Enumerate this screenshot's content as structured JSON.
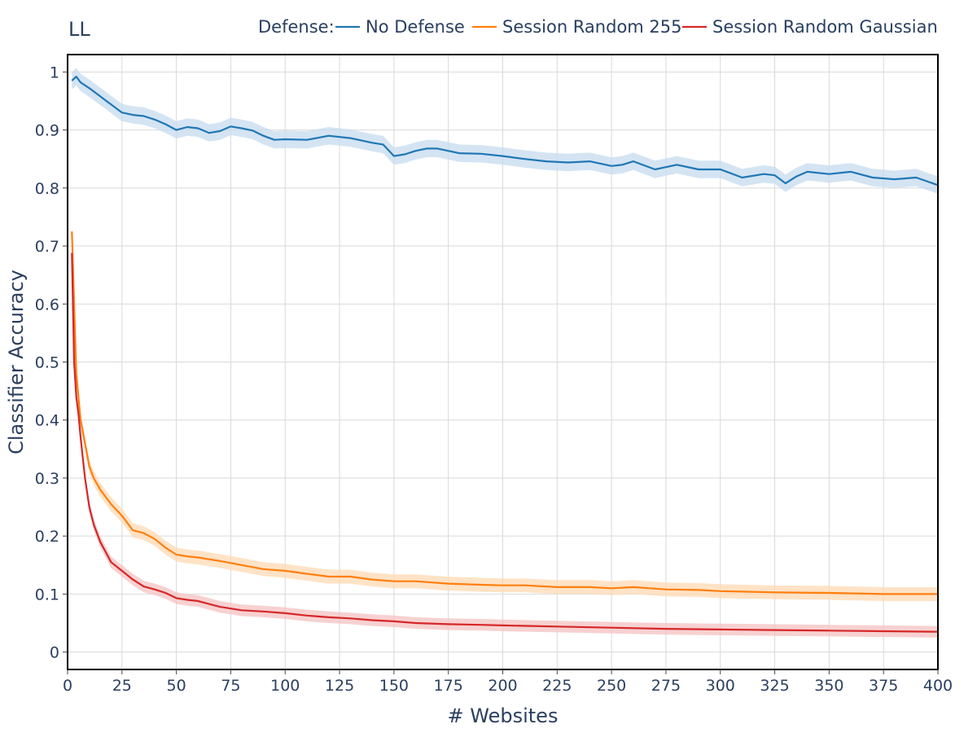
{
  "chart_data": {
    "type": "line",
    "title": "LL",
    "xlabel": "# Websites",
    "ylabel": "Classifier Accuracy",
    "xlim": [
      0,
      400
    ],
    "ylim": [
      -0.03,
      1.03
    ],
    "x_ticks": [
      0,
      25,
      50,
      75,
      100,
      125,
      150,
      175,
      200,
      225,
      250,
      275,
      300,
      325,
      350,
      375,
      400
    ],
    "y_ticks": [
      0,
      0.1,
      0.2,
      0.3,
      0.4,
      0.5,
      0.6,
      0.7,
      0.8,
      0.9,
      1
    ],
    "y_tick_labels": [
      "0",
      "0.1",
      "0.2",
      "0.3",
      "0.4",
      "0.5",
      "0.6",
      "0.7",
      "0.8",
      "0.9",
      "1"
    ],
    "grid": true,
    "legend": {
      "title": "Defense:",
      "position": "top"
    },
    "series": [
      {
        "name": "No Defense",
        "color": "#1f77b4",
        "band_color": "#c6dbef",
        "x": [
          2,
          4,
          6,
          10,
          15,
          20,
          25,
          30,
          35,
          40,
          45,
          50,
          55,
          60,
          65,
          70,
          75,
          80,
          85,
          90,
          95,
          100,
          110,
          120,
          130,
          140,
          145,
          150,
          155,
          160,
          165,
          170,
          180,
          190,
          200,
          210,
          220,
          230,
          240,
          250,
          255,
          260,
          270,
          275,
          280,
          290,
          300,
          310,
          320,
          325,
          330,
          335,
          340,
          350,
          360,
          370,
          380,
          390,
          400
        ],
        "y": [
          0.985,
          0.992,
          0.982,
          0.972,
          0.958,
          0.944,
          0.93,
          0.926,
          0.924,
          0.918,
          0.91,
          0.9,
          0.905,
          0.903,
          0.895,
          0.898,
          0.906,
          0.903,
          0.899,
          0.89,
          0.883,
          0.884,
          0.883,
          0.89,
          0.886,
          0.878,
          0.875,
          0.855,
          0.858,
          0.864,
          0.868,
          0.868,
          0.86,
          0.859,
          0.855,
          0.85,
          0.846,
          0.844,
          0.846,
          0.838,
          0.84,
          0.846,
          0.832,
          0.836,
          0.84,
          0.832,
          0.832,
          0.818,
          0.824,
          0.822,
          0.808,
          0.82,
          0.828,
          0.824,
          0.828,
          0.818,
          0.815,
          0.818,
          0.805
        ],
        "ci": 0.015
      },
      {
        "name": "Session Random 255",
        "color": "#ff7f0e",
        "band_color": "#ffd9b3",
        "x": [
          2,
          4,
          6,
          8,
          10,
          12,
          15,
          20,
          25,
          30,
          35,
          40,
          45,
          50,
          55,
          60,
          70,
          80,
          90,
          100,
          110,
          120,
          130,
          140,
          150,
          160,
          175,
          190,
          200,
          210,
          225,
          240,
          250,
          260,
          275,
          290,
          300,
          325,
          350,
          375,
          400
        ],
        "y": [
          0.725,
          0.48,
          0.4,
          0.36,
          0.32,
          0.3,
          0.28,
          0.255,
          0.235,
          0.21,
          0.205,
          0.195,
          0.18,
          0.168,
          0.165,
          0.163,
          0.157,
          0.15,
          0.143,
          0.14,
          0.135,
          0.13,
          0.13,
          0.125,
          0.122,
          0.122,
          0.118,
          0.116,
          0.115,
          0.115,
          0.112,
          0.112,
          0.11,
          0.112,
          0.108,
          0.107,
          0.105,
          0.103,
          0.102,
          0.1,
          0.1
        ],
        "ci": 0.012
      },
      {
        "name": "Session Random Gaussian",
        "color": "#d62728",
        "band_color": "#f4c2c2",
        "x": [
          2,
          3,
          4,
          5,
          6,
          8,
          10,
          12,
          15,
          20,
          25,
          30,
          35,
          40,
          45,
          50,
          55,
          60,
          70,
          80,
          90,
          100,
          110,
          120,
          130,
          140,
          150,
          160,
          175,
          190,
          200,
          225,
          250,
          275,
          300,
          325,
          350,
          375,
          400
        ],
        "y": [
          0.688,
          0.5,
          0.44,
          0.41,
          0.37,
          0.3,
          0.25,
          0.22,
          0.19,
          0.155,
          0.14,
          0.125,
          0.113,
          0.108,
          0.102,
          0.093,
          0.09,
          0.088,
          0.078,
          0.072,
          0.07,
          0.067,
          0.063,
          0.06,
          0.058,
          0.055,
          0.053,
          0.05,
          0.048,
          0.047,
          0.046,
          0.044,
          0.042,
          0.04,
          0.039,
          0.038,
          0.037,
          0.036,
          0.035
        ],
        "ci": 0.01
      }
    ]
  }
}
